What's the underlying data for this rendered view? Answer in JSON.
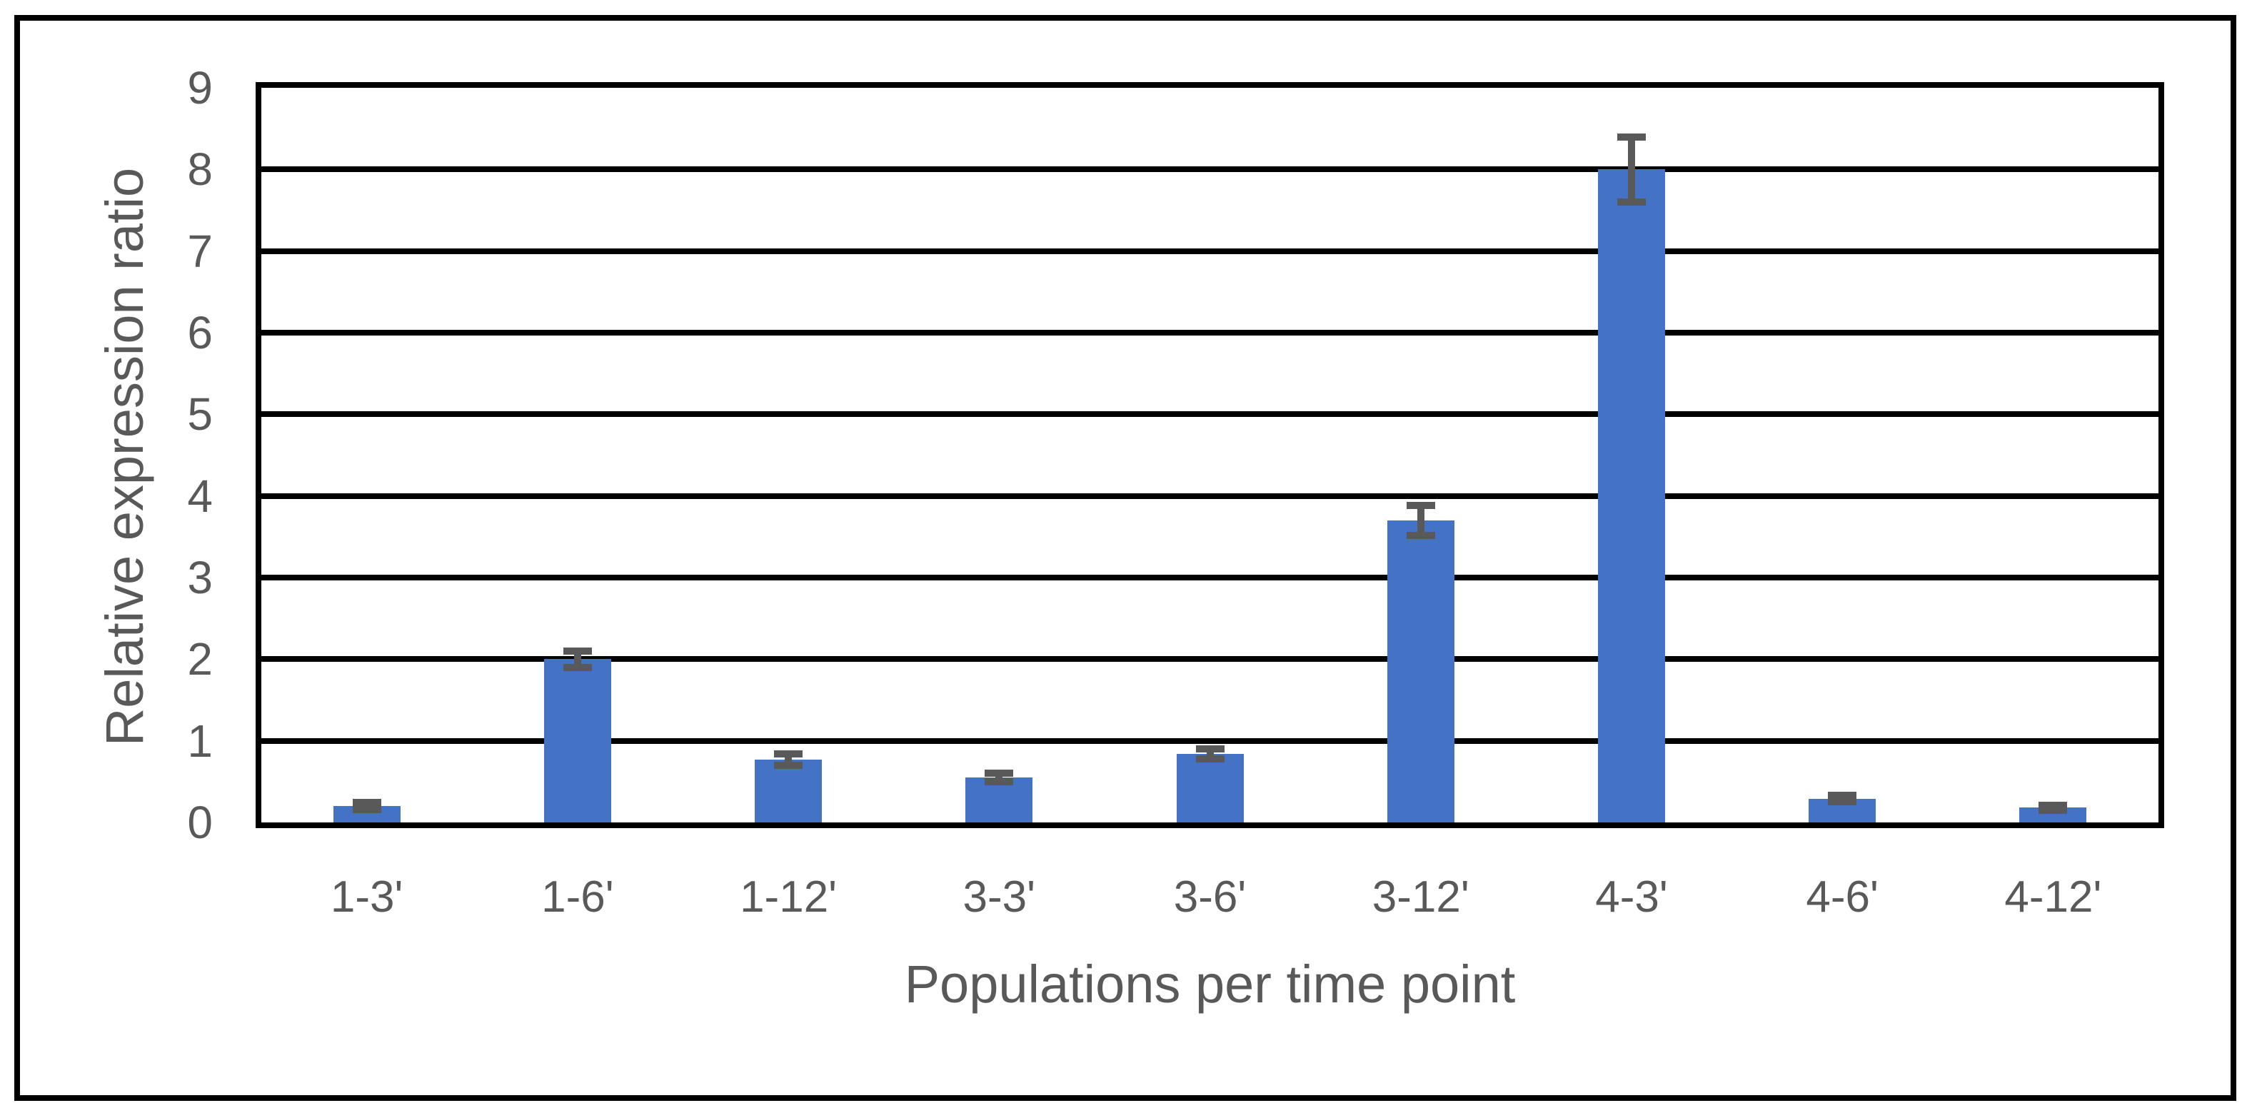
{
  "chart_data": {
    "type": "bar",
    "title": "",
    "categories": [
      "1-3'",
      "1-6'",
      "1-12'",
      "3-3'",
      "3-6'",
      "3-12'",
      "4-3'",
      "4-6'",
      "4-12'"
    ],
    "values": [
      0.2,
      2.0,
      0.77,
      0.55,
      0.84,
      3.7,
      8.0,
      0.29,
      0.18
    ],
    "error_bars": [
      0.045,
      0.1,
      0.07,
      0.05,
      0.06,
      0.18,
      0.4,
      0.04,
      0.03
    ],
    "xlabel": "Populations per time point",
    "ylabel": "Relative expression ratio",
    "ylim": [
      0,
      9
    ],
    "yticks": [
      0,
      1,
      2,
      3,
      4,
      5,
      6,
      7,
      8,
      9
    ],
    "grid": "horizontal-major",
    "legend": "none",
    "series_name": "Relative expression ratio",
    "colors": {
      "bar": "#4472C4",
      "error_bar": "#595959",
      "axis_text": "#595959",
      "gridline": "#000000",
      "plot_border": "#000000",
      "frame": "#000000",
      "background": "#FFFFFF"
    }
  }
}
